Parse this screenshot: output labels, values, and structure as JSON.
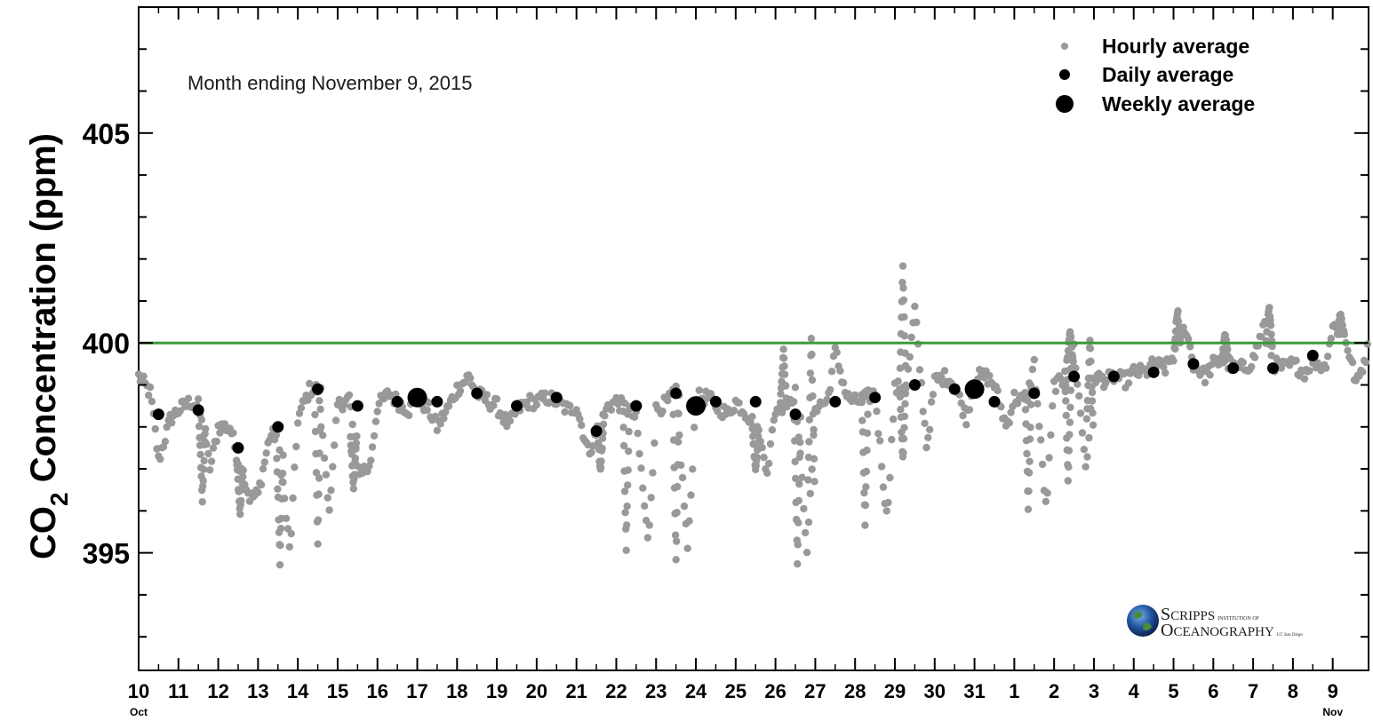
{
  "chart_data": {
    "type": "scatter",
    "ylabel_main": "CO",
    "ylabel_sub": "2",
    "ylabel_rest": " Concentration (ppm)",
    "annotation": "Month ending November 9, 2015",
    "ylim": [
      392.2,
      408
    ],
    "xlim": [
      0,
      30.9
    ],
    "y_ticks": [
      395,
      400,
      405
    ],
    "y_tick_labels": [
      "395",
      "400",
      "405"
    ],
    "x_tick_labels": [
      "10",
      "11",
      "12",
      "13",
      "14",
      "15",
      "16",
      "17",
      "18",
      "19",
      "20",
      "21",
      "22",
      "23",
      "24",
      "25",
      "26",
      "27",
      "28",
      "29",
      "30",
      "31",
      "1",
      "2",
      "3",
      "4",
      "5",
      "6",
      "7",
      "8",
      "9"
    ],
    "x_month_labels": [
      {
        "day_index": 0,
        "label": "Oct"
      },
      {
        "day_index": 30,
        "label": "Nov"
      }
    ],
    "reference_line": {
      "value": 400,
      "color": "#3a9a3a"
    },
    "legend": {
      "placement": "top-right",
      "entries": [
        {
          "label": "Hourly average",
          "marker": "small-gray"
        },
        {
          "label": "Daily average",
          "marker": "medium-black"
        },
        {
          "label": "Weekly average",
          "marker": "large-black"
        }
      ]
    },
    "colors": {
      "hourly": "#999999",
      "daily": "#000000",
      "weekly": "#000000",
      "reference": "#3a9a3a"
    },
    "series": [
      {
        "name": "Daily average",
        "x": [
          0.5,
          1.5,
          2.5,
          3.5,
          4.5,
          5.5,
          6.5,
          7.5,
          8.5,
          9.5,
          10.5,
          11.5,
          12.5,
          13.5,
          14.5,
          15.5,
          16.5,
          17.5,
          18.5,
          19.5,
          20.5,
          21.5,
          22.5,
          23.5,
          24.5,
          25.5,
          26.5,
          27.5,
          28.5,
          29.5
        ],
        "y": [
          398.3,
          398.4,
          397.5,
          398.0,
          398.9,
          398.5,
          398.6,
          398.6,
          398.8,
          398.5,
          398.7,
          397.9,
          398.5,
          398.8,
          398.6,
          398.6,
          398.3,
          398.6,
          398.7,
          399.0,
          398.9,
          398.6,
          398.8,
          399.2,
          399.2,
          399.3,
          399.5,
          399.4,
          399.4,
          399.7
        ]
      },
      {
        "name": "Weekly average",
        "x": [
          7.0,
          14.0,
          21.0
        ],
        "y": [
          398.7,
          398.5,
          398.9
        ]
      },
      {
        "name": "Hourly average",
        "anchors_x": [
          0,
          0.3,
          0.5,
          0.8,
          1.0,
          1.3,
          1.5,
          1.8,
          2.0,
          2.3,
          2.5,
          2.8,
          3.0,
          3.3,
          3.5,
          3.8,
          4.0,
          4.3,
          4.5,
          4.8,
          5.0,
          5.3,
          5.5,
          5.8,
          6.0,
          6.3,
          6.5,
          6.8,
          7.0,
          7.3,
          7.5,
          7.8,
          8.0,
          8.3,
          8.5,
          8.8,
          9.0,
          9.3,
          9.5,
          9.8,
          10.0,
          10.3,
          10.5,
          10.8,
          11.0,
          11.3,
          11.5,
          11.8,
          12.0,
          12.3,
          12.5,
          12.8,
          13.0,
          13.3,
          13.5,
          13.8,
          14.0,
          14.3,
          14.5,
          14.8,
          15.0,
          15.3,
          15.5,
          15.8,
          16.0,
          16.3,
          16.5,
          16.8,
          17.0,
          17.3,
          17.5,
          17.8,
          18.0,
          18.3,
          18.5,
          18.8,
          19.0,
          19.3,
          19.5,
          19.8,
          20.0,
          20.3,
          20.5,
          20.8,
          21.0,
          21.3,
          21.5,
          21.8,
          22.0,
          22.3,
          22.5,
          22.8,
          23.0,
          23.3,
          23.5,
          23.8,
          24.0,
          24.3,
          24.5,
          24.8,
          25.0,
          25.3,
          25.5,
          25.8,
          26.0,
          26.3,
          26.5,
          26.8,
          27.0,
          27.3,
          27.5,
          27.8,
          28.0,
          28.3,
          28.5,
          28.8,
          29.0,
          29.3,
          29.5,
          29.8,
          30.0,
          30.3,
          30.6,
          30.9
        ],
        "anchors_y": [
          399.2,
          398.8,
          397.2,
          398.2,
          398.4,
          398.6,
          398.5,
          397.0,
          398.0,
          398.0,
          397.2,
          396.3,
          396.4,
          397.8,
          397.8,
          395.0,
          398.2,
          398.9,
          398.9,
          396.0,
          398.5,
          398.7,
          397.0,
          397.0,
          398.5,
          398.8,
          398.6,
          398.4,
          398.7,
          398.4,
          398.0,
          398.5,
          398.9,
          399.2,
          398.8,
          398.6,
          398.5,
          398.0,
          398.4,
          398.6,
          398.6,
          398.7,
          398.6,
          398.4,
          398.5,
          397.4,
          397.8,
          398.5,
          398.6,
          398.4,
          398.2,
          395.2,
          398.4,
          398.6,
          398.8,
          395.0,
          398.7,
          398.7,
          398.5,
          398.3,
          398.6,
          398.3,
          398.0,
          397.0,
          398.4,
          398.6,
          398.8,
          395.0,
          398.5,
          398.6,
          399.8,
          398.7,
          398.6,
          398.7,
          398.8,
          395.8,
          398.9,
          399.0,
          400.8,
          397.5,
          399.1,
          399.2,
          399.0,
          398.2,
          399.2,
          399.2,
          399.0,
          398.0,
          398.7,
          398.6,
          399.5,
          396.0,
          399.0,
          399.1,
          399.9,
          397.0,
          399.2,
          399.1,
          399.2,
          399.1,
          399.3,
          399.3,
          399.5,
          399.4,
          399.7,
          400.4,
          399.5,
          399.2,
          399.5,
          399.6,
          399.4,
          399.4,
          399.6,
          400.5,
          399.5,
          399.4,
          399.5,
          399.3,
          399.6,
          399.4,
          400.4,
          400.2,
          399.0,
          399.9
        ],
        "dips": [
          {
            "x": 3.55,
            "y": 394.8
          },
          {
            "x": 4.5,
            "y": 395.3
          },
          {
            "x": 2.55,
            "y": 396.0
          },
          {
            "x": 1.6,
            "y": 396.3
          },
          {
            "x": 5.4,
            "y": 396.5
          },
          {
            "x": 11.6,
            "y": 396.9
          },
          {
            "x": 12.25,
            "y": 395.1
          },
          {
            "x": 13.5,
            "y": 394.8
          },
          {
            "x": 15.5,
            "y": 396.9
          },
          {
            "x": 16.55,
            "y": 394.8
          },
          {
            "x": 18.25,
            "y": 395.6
          },
          {
            "x": 19.2,
            "y": 397.2
          },
          {
            "x": 22.35,
            "y": 396.1
          },
          {
            "x": 23.35,
            "y": 396.7
          }
        ],
        "peaks": [
          {
            "x": 19.2,
            "y": 401.8
          },
          {
            "x": 16.9,
            "y": 400.2
          },
          {
            "x": 16.2,
            "y": 399.8
          },
          {
            "x": 23.4,
            "y": 400.3
          },
          {
            "x": 26.1,
            "y": 400.8
          },
          {
            "x": 28.4,
            "y": 400.9
          },
          {
            "x": 30.2,
            "y": 400.7
          },
          {
            "x": 23.9,
            "y": 400.1
          },
          {
            "x": 27.3,
            "y": 400.2
          }
        ]
      }
    ]
  },
  "logo": {
    "line1_big": "S",
    "line1_rest": "CRIPPS",
    "line1_small": "INSTITUTION OF",
    "line2_big": "O",
    "line2_rest": "CEANOGRAPHY",
    "line2_small": "UC San Diego"
  }
}
